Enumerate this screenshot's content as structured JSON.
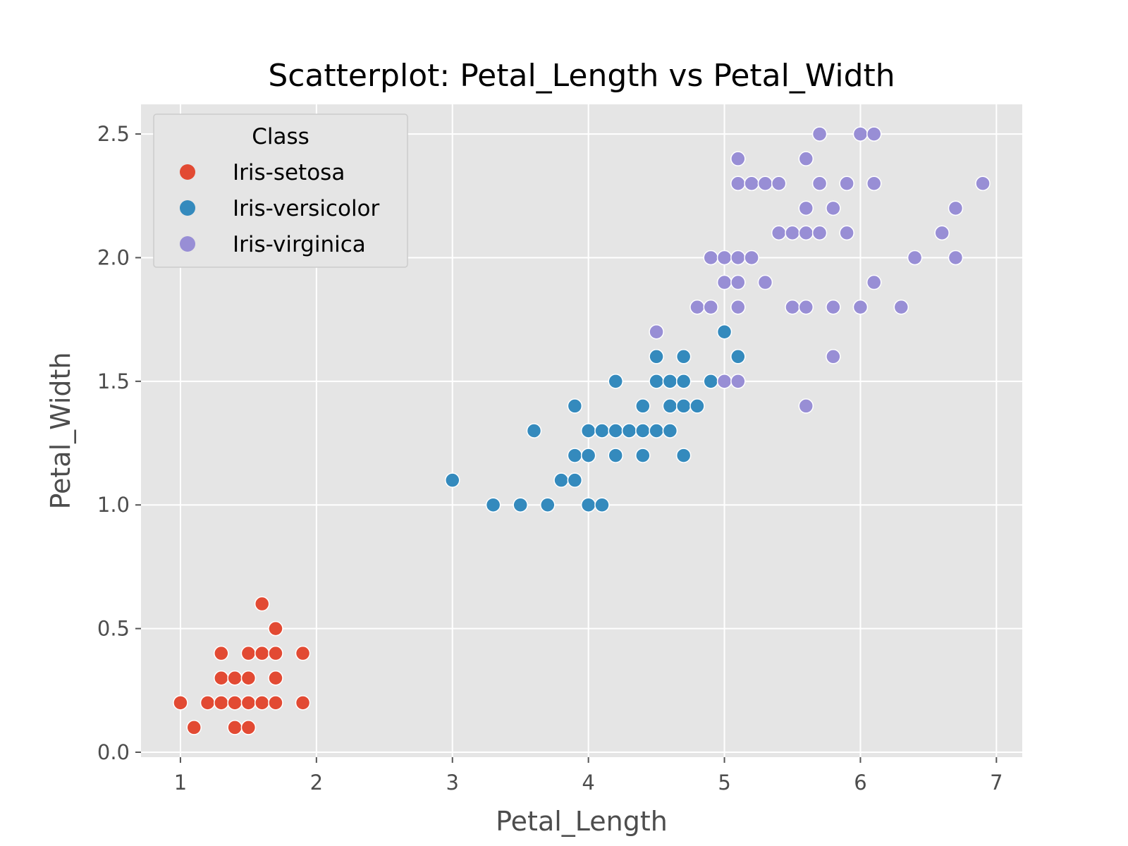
{
  "chart_data": {
    "type": "scatter",
    "title": "Scatterplot: Petal_Length vs Petal_Width",
    "xlabel": "Petal_Length",
    "ylabel": "Petal_Width",
    "xlim": [
      0.71,
      7.19
    ],
    "ylim": [
      -0.02,
      2.62
    ],
    "xticks": [
      1,
      2,
      3,
      4,
      5,
      6,
      7
    ],
    "xtick_labels": [
      "1",
      "2",
      "3",
      "4",
      "5",
      "6",
      "7"
    ],
    "yticks": [
      0.0,
      0.5,
      1.0,
      1.5,
      2.0,
      2.5
    ],
    "ytick_labels": [
      "0.0",
      "0.5",
      "1.0",
      "1.5",
      "2.0",
      "2.5"
    ],
    "grid": true,
    "style": "ggplot",
    "legend": {
      "title": "Class",
      "placement": "top-left"
    },
    "series": [
      {
        "name": "Iris-setosa",
        "color": "#E24A33",
        "points": [
          [
            1.0,
            0.2
          ],
          [
            1.1,
            0.1
          ],
          [
            1.2,
            0.2
          ],
          [
            1.3,
            0.2
          ],
          [
            1.3,
            0.3
          ],
          [
            1.3,
            0.4
          ],
          [
            1.4,
            0.1
          ],
          [
            1.4,
            0.2
          ],
          [
            1.4,
            0.3
          ],
          [
            1.5,
            0.1
          ],
          [
            1.5,
            0.2
          ],
          [
            1.5,
            0.3
          ],
          [
            1.5,
            0.4
          ],
          [
            1.6,
            0.2
          ],
          [
            1.6,
            0.4
          ],
          [
            1.6,
            0.6
          ],
          [
            1.7,
            0.2
          ],
          [
            1.7,
            0.3
          ],
          [
            1.7,
            0.4
          ],
          [
            1.7,
            0.5
          ],
          [
            1.9,
            0.2
          ],
          [
            1.9,
            0.4
          ]
        ]
      },
      {
        "name": "Iris-versicolor",
        "color": "#348ABD",
        "points": [
          [
            3.0,
            1.1
          ],
          [
            3.3,
            1.0
          ],
          [
            3.5,
            1.0
          ],
          [
            3.6,
            1.3
          ],
          [
            3.7,
            1.0
          ],
          [
            3.8,
            1.1
          ],
          [
            3.9,
            1.1
          ],
          [
            3.9,
            1.2
          ],
          [
            3.9,
            1.4
          ],
          [
            4.0,
            1.0
          ],
          [
            4.0,
            1.2
          ],
          [
            4.0,
            1.3
          ],
          [
            4.1,
            1.0
          ],
          [
            4.1,
            1.3
          ],
          [
            4.2,
            1.2
          ],
          [
            4.2,
            1.3
          ],
          [
            4.2,
            1.5
          ],
          [
            4.3,
            1.3
          ],
          [
            4.4,
            1.2
          ],
          [
            4.4,
            1.3
          ],
          [
            4.4,
            1.4
          ],
          [
            4.5,
            1.3
          ],
          [
            4.5,
            1.5
          ],
          [
            4.5,
            1.6
          ],
          [
            4.6,
            1.3
          ],
          [
            4.6,
            1.4
          ],
          [
            4.6,
            1.5
          ],
          [
            4.7,
            1.2
          ],
          [
            4.7,
            1.4
          ],
          [
            4.7,
            1.5
          ],
          [
            4.7,
            1.6
          ],
          [
            4.8,
            1.4
          ],
          [
            4.9,
            1.5
          ],
          [
            5.0,
            1.7
          ],
          [
            5.1,
            1.6
          ]
        ]
      },
      {
        "name": "Iris-virginica",
        "color": "#988ED5",
        "points": [
          [
            4.5,
            1.7
          ],
          [
            4.8,
            1.8
          ],
          [
            4.9,
            1.8
          ],
          [
            4.9,
            2.0
          ],
          [
            5.0,
            1.5
          ],
          [
            5.0,
            1.9
          ],
          [
            5.0,
            2.0
          ],
          [
            5.1,
            1.5
          ],
          [
            5.1,
            1.8
          ],
          [
            5.1,
            1.9
          ],
          [
            5.1,
            2.0
          ],
          [
            5.1,
            2.3
          ],
          [
            5.1,
            2.4
          ],
          [
            5.2,
            2.0
          ],
          [
            5.2,
            2.3
          ],
          [
            5.3,
            1.9
          ],
          [
            5.3,
            2.3
          ],
          [
            5.4,
            2.1
          ],
          [
            5.4,
            2.3
          ],
          [
            5.5,
            1.8
          ],
          [
            5.5,
            2.1
          ],
          [
            5.6,
            1.4
          ],
          [
            5.6,
            1.8
          ],
          [
            5.6,
            2.1
          ],
          [
            5.6,
            2.2
          ],
          [
            5.6,
            2.4
          ],
          [
            5.7,
            2.1
          ],
          [
            5.7,
            2.3
          ],
          [
            5.7,
            2.5
          ],
          [
            5.8,
            1.6
          ],
          [
            5.8,
            1.8
          ],
          [
            5.8,
            2.2
          ],
          [
            5.9,
            2.1
          ],
          [
            5.9,
            2.3
          ],
          [
            6.0,
            1.8
          ],
          [
            6.0,
            2.5
          ],
          [
            6.1,
            1.9
          ],
          [
            6.1,
            2.3
          ],
          [
            6.1,
            2.5
          ],
          [
            6.3,
            1.8
          ],
          [
            6.4,
            2.0
          ],
          [
            6.6,
            2.1
          ],
          [
            6.7,
            2.0
          ],
          [
            6.7,
            2.2
          ],
          [
            6.9,
            2.3
          ]
        ]
      }
    ]
  }
}
